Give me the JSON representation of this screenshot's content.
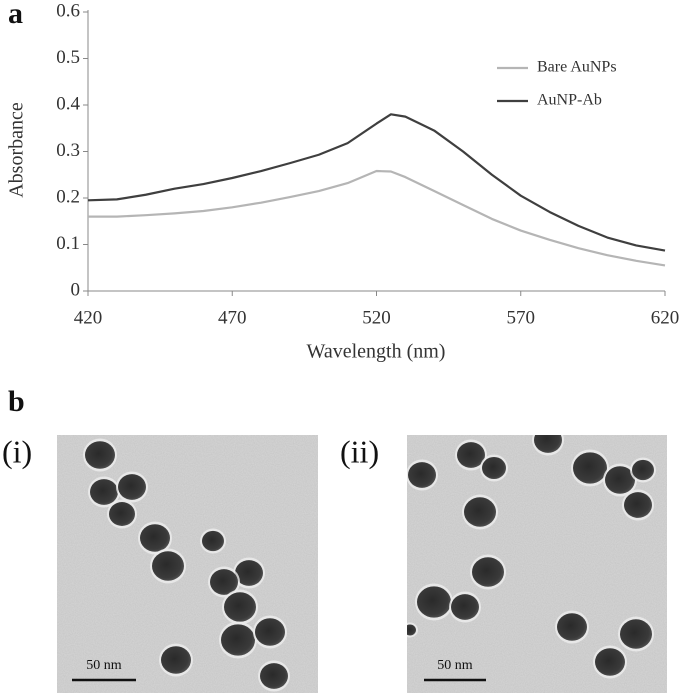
{
  "chart_data": {
    "type": "line",
    "xlabel": "Wavelength (nm)",
    "ylabel": "Absorbance",
    "x": [
      420,
      430,
      440,
      450,
      460,
      470,
      480,
      490,
      500,
      510,
      520,
      525,
      530,
      540,
      550,
      560,
      570,
      580,
      590,
      600,
      610,
      620
    ],
    "series": [
      {
        "name": "Bare AuNPs",
        "color": "#b5b5b5",
        "values": [
          0.16,
          0.16,
          0.163,
          0.167,
          0.172,
          0.18,
          0.19,
          0.202,
          0.215,
          0.232,
          0.258,
          0.257,
          0.245,
          0.215,
          0.185,
          0.155,
          0.13,
          0.11,
          0.092,
          0.077,
          0.065,
          0.055
        ]
      },
      {
        "name": "AuNP-Ab",
        "color": "#3f3f3f",
        "values": [
          0.195,
          0.197,
          0.207,
          0.22,
          0.23,
          0.243,
          0.258,
          0.275,
          0.293,
          0.318,
          0.36,
          0.38,
          0.375,
          0.345,
          0.3,
          0.25,
          0.205,
          0.17,
          0.14,
          0.115,
          0.098,
          0.087
        ]
      }
    ],
    "xlim": [
      420,
      620
    ],
    "xticks": [
      420,
      470,
      520,
      570,
      620
    ],
    "ylim": [
      0,
      0.6
    ],
    "yticks": [
      0,
      0.1,
      0.2,
      0.3,
      0.4,
      0.5,
      0.6
    ],
    "grid": false,
    "legend": "upper right"
  },
  "panels": {
    "a": "a",
    "b": "b"
  },
  "images": [
    {
      "label": "(i)",
      "scale_bar": "50 nm"
    },
    {
      "label": "(ii)",
      "scale_bar": "50 nm"
    }
  ]
}
